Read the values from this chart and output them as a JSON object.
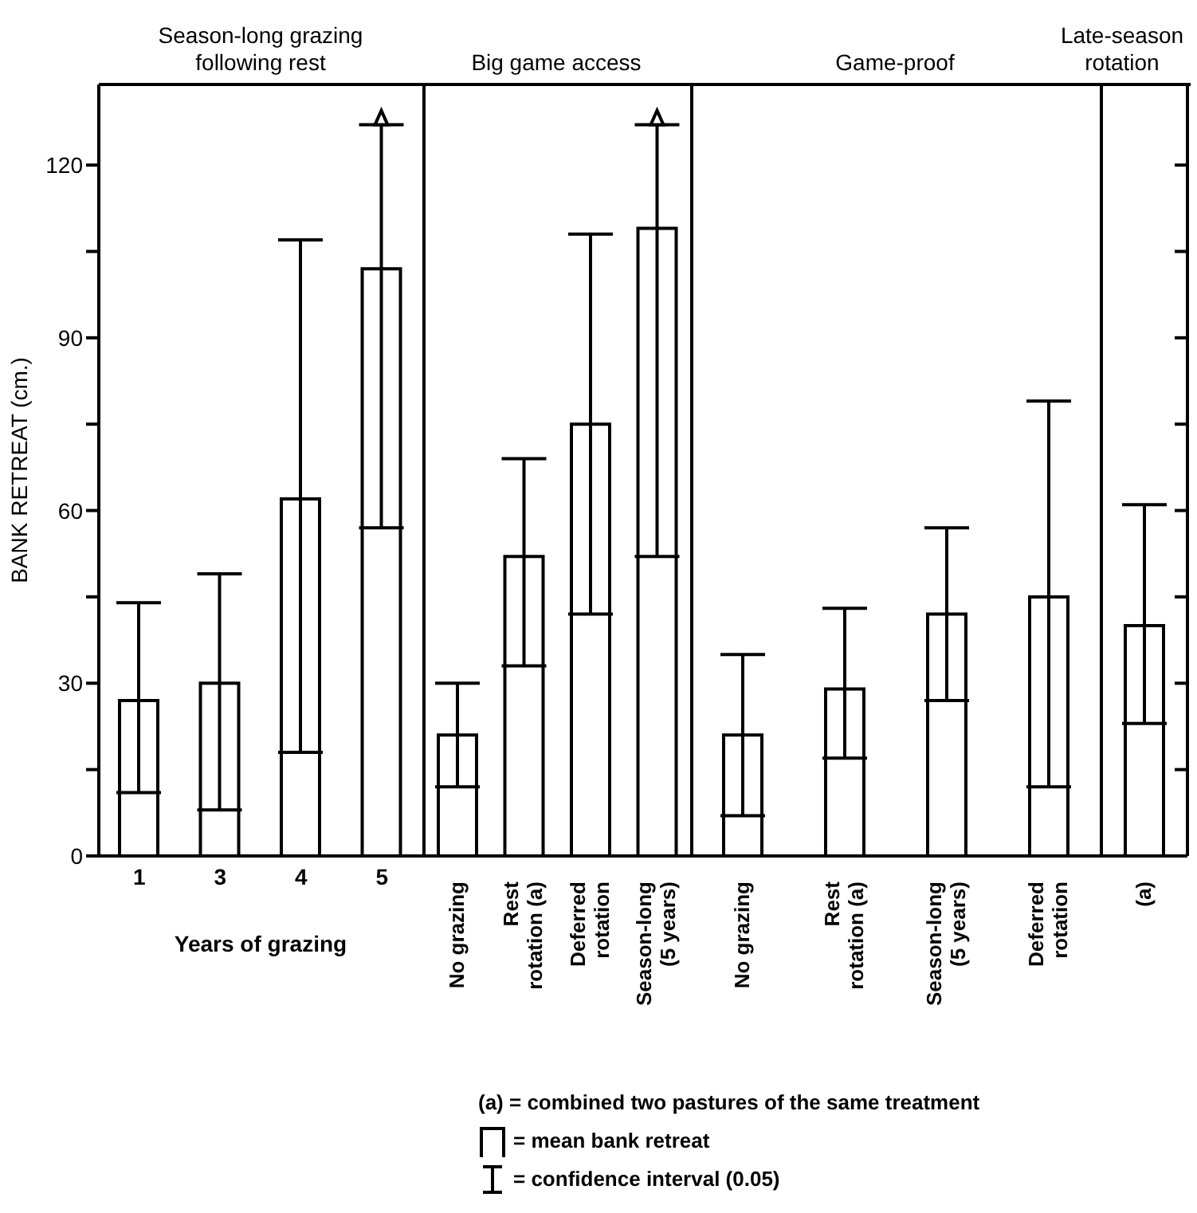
{
  "chart_data": [
    {
      "type": "bar",
      "title": "Season-long grazing following rest",
      "xlabel": "Years of grazing",
      "ylabel": "BANK RETREAT (cm.)",
      "categories": [
        "1",
        "3",
        "4",
        "5"
      ],
      "values": [
        27,
        30,
        62,
        102
      ],
      "errors": [
        [
          11,
          44
        ],
        [
          8,
          49
        ],
        [
          18,
          107
        ],
        [
          57,
          127
        ]
      ],
      "color": "#ffffff",
      "ylim": [
        0,
        134
      ],
      "yticks": [
        0,
        {
          "value": 15,
          "label": null
        },
        30,
        {
          "value": 45,
          "label": null
        },
        60,
        {
          "value": 75,
          "label": null
        },
        90,
        {
          "value": 105,
          "label": null
        },
        120
      ],
      "annotations": [
        "(a) = combined two pastures of the same treatment",
        "= mean bank retreat",
        "= confidence interval (0.05)"
      ]
    },
    {
      "type": "bar",
      "title": "Big game access",
      "categories": [
        "No grazing",
        "Rest rotation (a)",
        "Deferred rotation",
        "Season-long (5 years)"
      ],
      "values": [
        21,
        52,
        75,
        109
      ],
      "errors": [
        [
          12,
          30
        ],
        [
          33,
          69
        ],
        [
          42,
          108
        ],
        [
          52,
          127
        ]
      ],
      "color": "#ffffff",
      "ylim": [
        0,
        134
      ],
      "yticks": [
        0,
        {
          "value": 15,
          "label": null
        },
        30,
        {
          "value": 45,
          "label": null
        },
        60,
        {
          "value": 75,
          "label": null
        },
        90,
        {
          "value": 105,
          "label": null
        },
        120
      ],
      "tick_labels": "x"
    },
    {
      "type": "bar",
      "title": "Game-proof",
      "categories": [
        "No grazing",
        "Rest rotation (a)",
        "Season-long (5 years)",
        "Deferred rotation"
      ],
      "values": [
        21,
        29,
        42,
        45
      ],
      "errors": [
        [
          7,
          35
        ],
        [
          17,
          43
        ],
        [
          27,
          57
        ],
        [
          12,
          79
        ]
      ],
      "color": "#ffffff",
      "ylim": [
        0,
        134
      ],
      "yticks": [
        0,
        {
          "value": 15,
          "label": null
        },
        30,
        {
          "value": 45,
          "label": null
        },
        60,
        {
          "value": 75,
          "label": null
        },
        90,
        {
          "value": 105,
          "label": null
        },
        120
      ],
      "tick_labels": "x"
    },
    {
      "type": "bar",
      "title": "Late-season rotation",
      "categories": [
        "(a)"
      ],
      "values": [
        40
      ],
      "errors": [
        [
          23,
          61
        ]
      ],
      "color": "#ffffff",
      "ylim": [
        0,
        134
      ],
      "yticks": [
        0,
        {
          "value": 15,
          "label": null
        },
        30,
        {
          "value": 45,
          "label": null
        },
        60,
        {
          "value": 75,
          "label": null
        },
        90,
        {
          "value": 105,
          "label": null
        },
        120
      ],
      "tick_labels": "x"
    }
  ]
}
